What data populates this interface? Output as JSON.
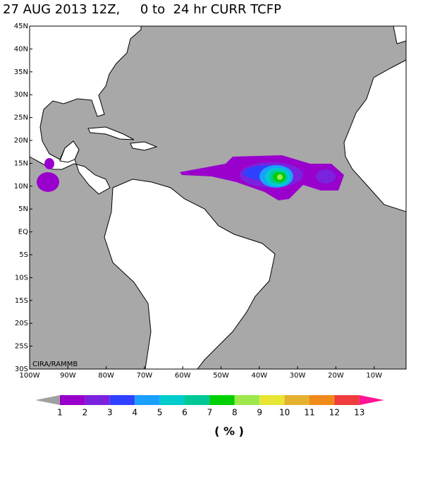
{
  "title": "27 AUG 2013 12Z,     0 to  24 hr CURR TCFP",
  "lat_labels": [
    "45N",
    "40N",
    "35N",
    "30N",
    "25N",
    "20N",
    "15N",
    "10N",
    "5N",
    "EQ",
    "5S",
    "10S",
    "15S",
    "20S",
    "25S",
    "30S"
  ],
  "lon_labels": [
    "100W",
    "90W",
    "80W",
    "70W",
    "60W",
    "50W",
    "40W",
    "30W",
    "20W",
    "10W"
  ],
  "credit": "CIRA/RAMMB",
  "colorbar": {
    "levels": [
      1,
      2,
      3,
      4,
      5,
      6,
      7,
      8,
      9,
      10,
      11,
      12,
      13
    ],
    "below_color": "#a0a0a0",
    "colors": [
      "#9a00cc",
      "#7a22dd",
      "#3040ff",
      "#1aa0ff",
      "#00cccc",
      "#00c896",
      "#00d000",
      "#9ee84e",
      "#e6e633",
      "#e6b030",
      "#f08a1a",
      "#f03c3c"
    ],
    "above_color": "#ff1493",
    "units": "( % )"
  }
}
